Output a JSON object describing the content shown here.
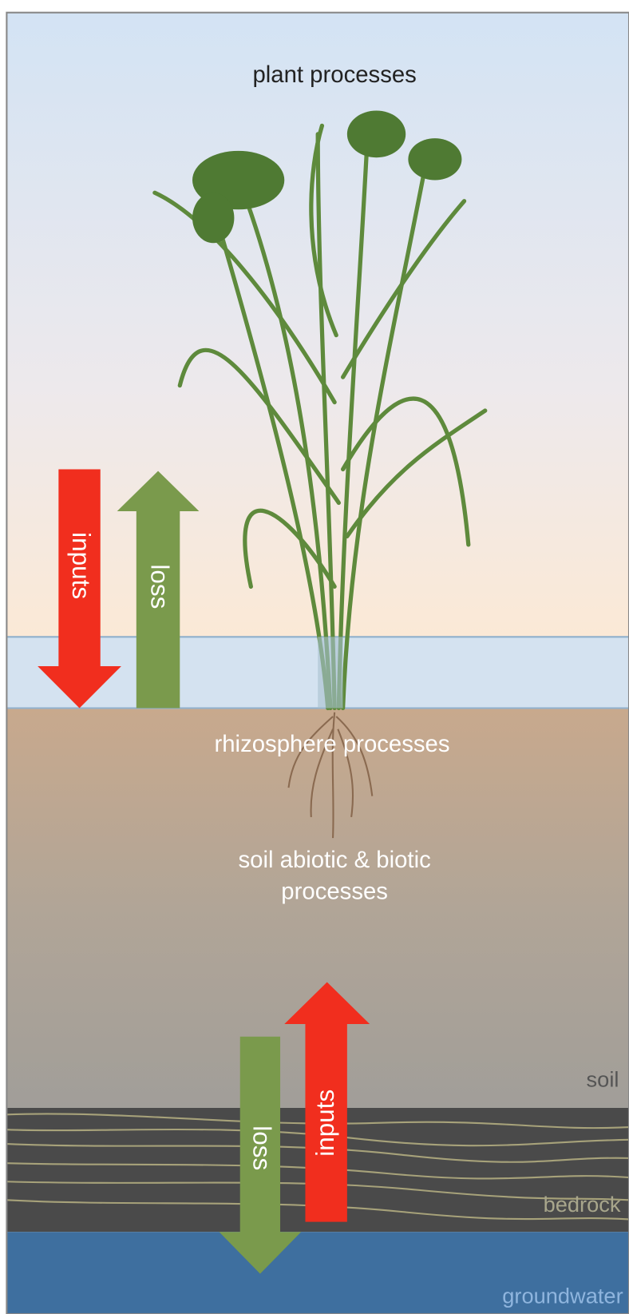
{
  "labels": {
    "plant": "plant processes",
    "rhizosphere": "rhizosphere processes",
    "soil_processes": [
      "soil abiotic & biotic",
      "processes"
    ],
    "soil": "soil",
    "bedrock": "bedrock",
    "groundwater": "groundwater"
  },
  "arrows": {
    "upper": {
      "inputs": "inputs",
      "loss": "loss"
    },
    "lower": {
      "loss": "loss",
      "inputs": "inputs"
    }
  }
}
